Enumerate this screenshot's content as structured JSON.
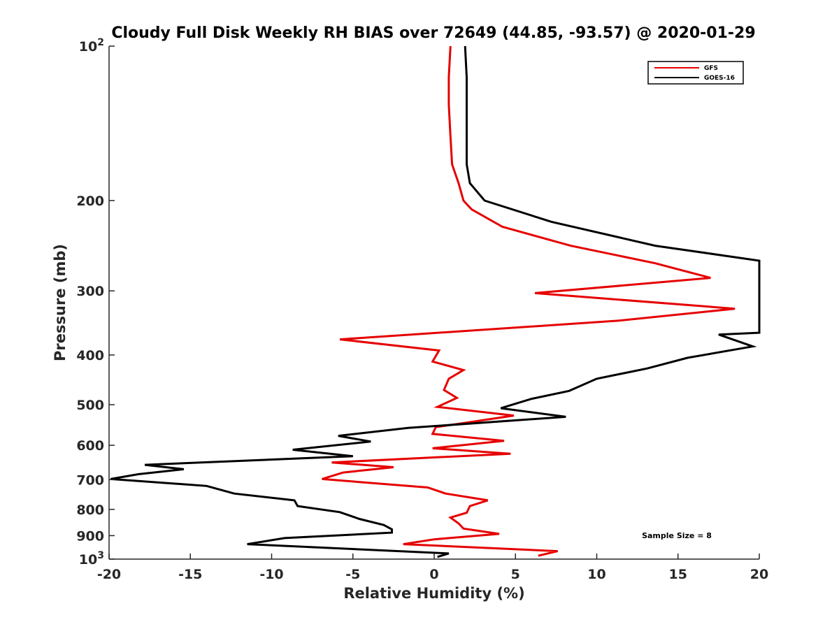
{
  "chart_data": {
    "type": "line",
    "title": "Cloudy Full Disk Weekly RH BIAS over 72649 (44.85, -93.57) @ 2020-01-29",
    "xlabel": "Relative Humidity (%)",
    "ylabel": "Pressure (mb)",
    "xlim": [
      -20,
      20
    ],
    "ylim": [
      100,
      1000
    ],
    "y_scale": "log",
    "y_reversed": true,
    "grid": false,
    "legend_position": "top-right",
    "annotation": "Sample Size = 8",
    "x_ticks": [
      {
        "value": -20,
        "label": "-20"
      },
      {
        "value": -15,
        "label": "-15"
      },
      {
        "value": -10,
        "label": "-10"
      },
      {
        "value": -5,
        "label": "-5"
      },
      {
        "value": 0,
        "label": "0"
      },
      {
        "value": 5,
        "label": "5"
      },
      {
        "value": 10,
        "label": "10"
      },
      {
        "value": 15,
        "label": "15"
      },
      {
        "value": 20,
        "label": "20"
      }
    ],
    "y_ticks": [
      {
        "value": 100,
        "label": "10",
        "sup": "2"
      },
      {
        "value": 200,
        "label": "200"
      },
      {
        "value": 300,
        "label": "300"
      },
      {
        "value": 400,
        "label": "400"
      },
      {
        "value": 500,
        "label": "500"
      },
      {
        "value": 600,
        "label": "600"
      },
      {
        "value": 700,
        "label": "700"
      },
      {
        "value": 800,
        "label": "800"
      },
      {
        "value": 900,
        "label": "900"
      },
      {
        "value": 1000,
        "label": "10",
        "sup": "3"
      }
    ],
    "series": [
      {
        "name": "GFS",
        "color": "#e60000",
        "points": [
          [
            1.0,
            100
          ],
          [
            0.9,
            115
          ],
          [
            0.9,
            130
          ],
          [
            1.0,
            150
          ],
          [
            1.1,
            170
          ],
          [
            1.5,
            185
          ],
          [
            1.8,
            200
          ],
          [
            2.3,
            208
          ],
          [
            4.2,
            225
          ],
          [
            8.4,
            245
          ],
          [
            13.6,
            265
          ],
          [
            17.0,
            283
          ],
          [
            6.2,
            303
          ],
          [
            18.5,
            325
          ],
          [
            11.3,
            343
          ],
          [
            -5.8,
            373
          ],
          [
            0.3,
            392
          ],
          [
            -0.1,
            412
          ],
          [
            1.8,
            428
          ],
          [
            0.9,
            445
          ],
          [
            0.6,
            468
          ],
          [
            1.4,
            485
          ],
          [
            0.2,
            505
          ],
          [
            4.9,
            525
          ],
          [
            0.1,
            553
          ],
          [
            -0.1,
            570
          ],
          [
            4.3,
            588
          ],
          [
            -0.1,
            608
          ],
          [
            4.7,
            623
          ],
          [
            -6.3,
            648
          ],
          [
            -2.5,
            662
          ],
          [
            -5.6,
            678
          ],
          [
            -6.9,
            698
          ],
          [
            -0.4,
            725
          ],
          [
            0.7,
            745
          ],
          [
            3.3,
            768
          ],
          [
            2.2,
            788
          ],
          [
            2.0,
            812
          ],
          [
            1.0,
            830
          ],
          [
            1.5,
            852
          ],
          [
            1.8,
            872
          ],
          [
            4.0,
            893
          ],
          [
            0.0,
            915
          ],
          [
            -1.9,
            935
          ],
          [
            7.6,
            965
          ],
          [
            6.4,
            985
          ]
        ]
      },
      {
        "name": "GOES-16",
        "color": "#000000",
        "points": [
          [
            1.9,
            100
          ],
          [
            2.0,
            115
          ],
          [
            2.0,
            130
          ],
          [
            2.0,
            150
          ],
          [
            2.0,
            170
          ],
          [
            2.2,
            185
          ],
          [
            3.1,
            200
          ],
          [
            7.2,
            220
          ],
          [
            13.6,
            245
          ],
          [
            20.0,
            262
          ],
          [
            20.0,
            362
          ],
          [
            17.5,
            365
          ],
          [
            19.6,
            385
          ],
          [
            15.6,
            405
          ],
          [
            13.1,
            425
          ],
          [
            10.0,
            445
          ],
          [
            8.3,
            470
          ],
          [
            6.0,
            487
          ],
          [
            4.1,
            508
          ],
          [
            8.1,
            528
          ],
          [
            -1.6,
            555
          ],
          [
            -5.9,
            575
          ],
          [
            -3.9,
            590
          ],
          [
            -8.7,
            612
          ],
          [
            -5.0,
            630
          ],
          [
            -17.8,
            655
          ],
          [
            -15.4,
            668
          ],
          [
            -18.2,
            683
          ],
          [
            -19.9,
            698
          ],
          [
            -14.0,
            720
          ],
          [
            -12.3,
            745
          ],
          [
            -8.6,
            768
          ],
          [
            -8.4,
            788
          ],
          [
            -5.8,
            810
          ],
          [
            -4.6,
            835
          ],
          [
            -3.1,
            858
          ],
          [
            -2.6,
            875
          ],
          [
            -2.6,
            888
          ],
          [
            -9.2,
            910
          ],
          [
            -11.5,
            935
          ],
          [
            0.9,
            975
          ],
          [
            0.2,
            990
          ]
        ]
      }
    ]
  }
}
